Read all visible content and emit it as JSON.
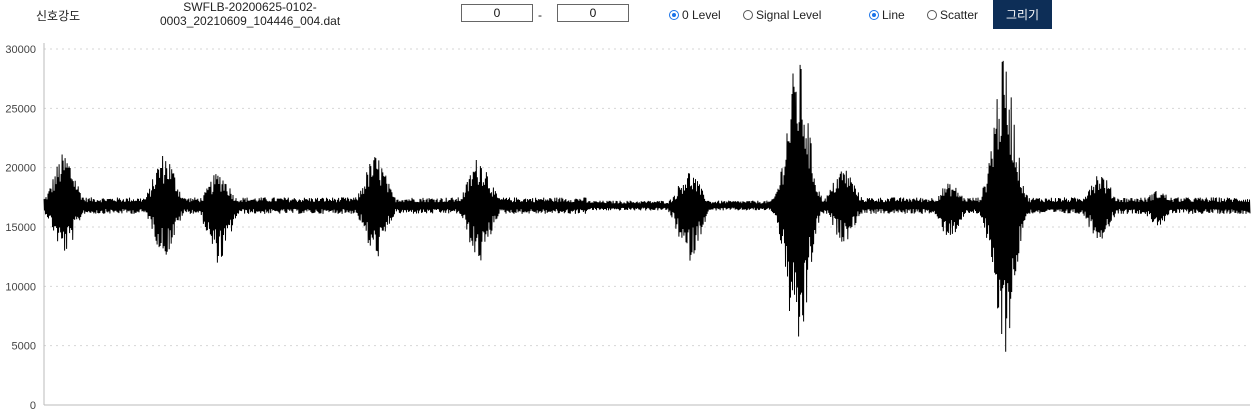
{
  "header": {
    "title": "신호강도",
    "filename_line1": "SWFLB-20200625-0102-",
    "filename_line2": "0003_20210609_104446_004.dat",
    "range_start": "0",
    "range_end": "0",
    "range_separator": "-",
    "level_options": [
      "0 Level",
      "Signal Level"
    ],
    "level_selected": "0 Level",
    "style_options": [
      "Line",
      "Scatter"
    ],
    "style_selected": "Line",
    "draw_label": "그리기"
  },
  "chart_data": {
    "type": "line",
    "title": "",
    "xlabel": "",
    "ylabel": "",
    "ylim": [
      0,
      30000
    ],
    "yticks": [
      0,
      5000,
      10000,
      15000,
      20000,
      25000,
      30000
    ],
    "grid": "horizontal-dotted",
    "baseline": 16800,
    "noise_amplitude": 700,
    "series": [
      {
        "color": "#000000",
        "bursts": [
          {
            "x": 0.017,
            "max": 21300,
            "min": 12700
          },
          {
            "x": 0.1,
            "max": 21300,
            "min": 12500
          },
          {
            "x": 0.145,
            "max": 19700,
            "min": 11900
          },
          {
            "x": 0.275,
            "max": 21100,
            "min": 12300
          },
          {
            "x": 0.361,
            "max": 21000,
            "min": 11900
          },
          {
            "x": 0.535,
            "max": 19800,
            "min": 12100
          },
          {
            "x": 0.625,
            "max": 29300,
            "min": 3900
          },
          {
            "x": 0.663,
            "max": 20100,
            "min": 13700
          },
          {
            "x": 0.751,
            "max": 18700,
            "min": 14100
          },
          {
            "x": 0.796,
            "max": 29200,
            "min": 4300
          },
          {
            "x": 0.875,
            "max": 19700,
            "min": 13900
          },
          {
            "x": 0.924,
            "max": 18100,
            "min": 15100
          }
        ]
      }
    ]
  }
}
